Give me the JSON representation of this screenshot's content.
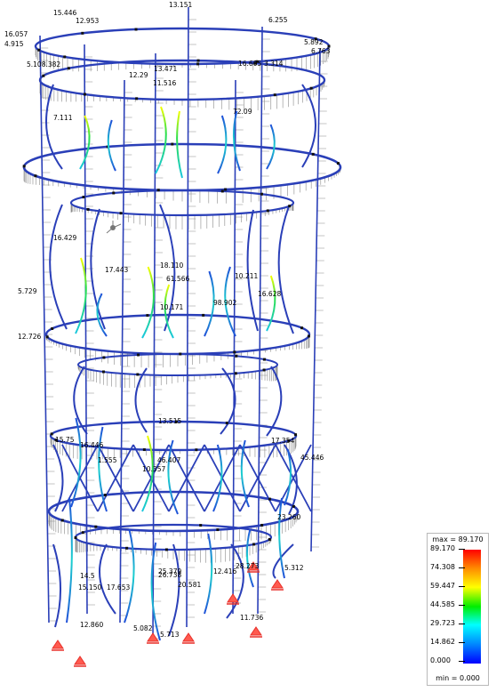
{
  "legend": {
    "max_label": "max = 89.170",
    "min_label": "min = 0.000",
    "ticks": [
      "89.170",
      "74.308",
      "59.447",
      "44.585",
      "29.723",
      "14.862",
      "0.000"
    ],
    "colors": [
      "#ff0000",
      "#ff8800",
      "#ffff00",
      "#00ee00",
      "#00ffff",
      "#0088ff",
      "#0000ff"
    ]
  },
  "model": {
    "frame_color": "#2a3fb8",
    "hatch_color": "#8a8a8a",
    "support_color": "#e8302a",
    "value_labels": [
      "13.151",
      "15.446",
      "12.953",
      "6.255",
      "16.057",
      "4.915",
      "5.892",
      "6.763",
      "5.108.382",
      "13.471",
      "12.29",
      "11.516",
      "16.605",
      "3.314",
      "7.111",
      "72.09",
      "16.429",
      "17.443",
      "18.110",
      "5.729",
      "61.566",
      "10.211",
      "16.628",
      "98.902",
      "10.171",
      "12.726",
      "13.515",
      "15.75",
      "16.446",
      "17.354",
      "45.446",
      "46.407",
      "10.357",
      "23.260",
      "12.416",
      "28.273",
      "5.312",
      "25.379",
      "14.5",
      "15.150",
      "17.653",
      "20.581",
      "12.860",
      "5.082",
      "5.713",
      "26.738",
      "11.736",
      "1.555"
    ]
  }
}
